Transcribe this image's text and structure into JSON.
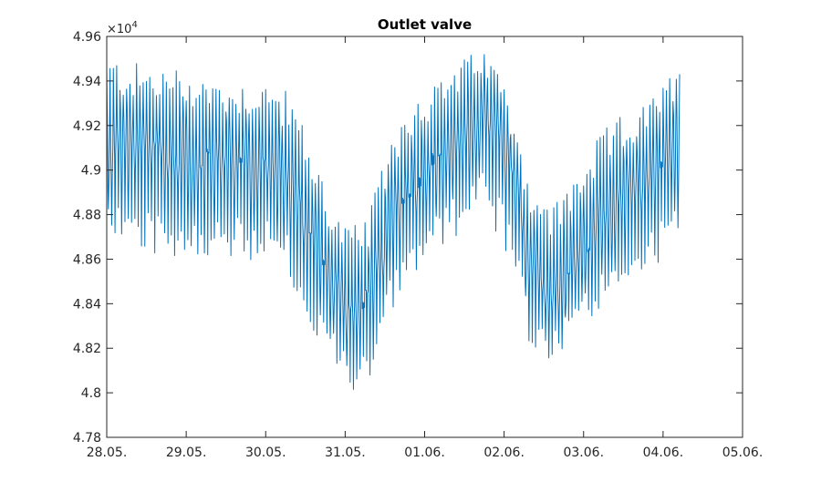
{
  "chart_data": {
    "type": "line",
    "title": "Outlet valve",
    "xlabel": "",
    "ylabel": "",
    "y_exponent_label": "×10",
    "y_exponent_power": "4",
    "y_multiplier": 10000,
    "ylim": [
      4.78,
      4.96
    ],
    "yticks": [
      "4.78",
      "4.8",
      "4.82",
      "4.84",
      "4.86",
      "4.88",
      "4.9",
      "4.92",
      "4.94",
      "4.96"
    ],
    "xlim": [
      "28.05.",
      "05.06."
    ],
    "xticks": [
      "28.05.",
      "29.05.",
      "30.05.",
      "31.05.",
      "01.06.",
      "02.06.",
      "03.06.",
      "04.06.",
      "05.06."
    ],
    "x_end": "04.06. ~05:00",
    "oscillations_per_day": 24,
    "grid": false,
    "line_color": "#0072BD",
    "series": [
      {
        "envelope_days_from_start": [
          0,
          0.5,
          1.0,
          1.5,
          2.0,
          2.3,
          2.6,
          2.9,
          3.1,
          3.3,
          3.6,
          3.9,
          4.2,
          4.5,
          4.7,
          4.9,
          5.1,
          5.3,
          5.5,
          5.7,
          5.9,
          6.1,
          6.3,
          6.5,
          6.8,
          7.0,
          7.21
        ],
        "upper": [
          4.952,
          4.947,
          4.946,
          4.94,
          4.94,
          4.935,
          4.91,
          4.88,
          4.875,
          4.88,
          4.92,
          4.935,
          4.94,
          4.95,
          4.955,
          4.948,
          4.93,
          4.9,
          4.885,
          4.888,
          4.9,
          4.91,
          4.92,
          4.925,
          4.93,
          4.94,
          4.945
        ],
        "center": [
          4.91,
          4.908,
          4.905,
          4.905,
          4.903,
          4.895,
          4.865,
          4.845,
          4.835,
          4.845,
          4.88,
          4.895,
          4.91,
          4.918,
          4.925,
          4.918,
          4.895,
          4.86,
          4.845,
          4.848,
          4.86,
          4.87,
          4.88,
          4.888,
          4.895,
          4.905,
          4.91
        ],
        "lower": [
          4.87,
          4.862,
          4.86,
          4.858,
          4.857,
          4.85,
          4.825,
          4.805,
          4.8,
          4.808,
          4.84,
          4.855,
          4.862,
          4.872,
          4.878,
          4.87,
          4.85,
          4.82,
          4.812,
          4.818,
          4.828,
          4.835,
          4.842,
          4.848,
          4.855,
          4.86,
          4.862
        ]
      }
    ]
  }
}
